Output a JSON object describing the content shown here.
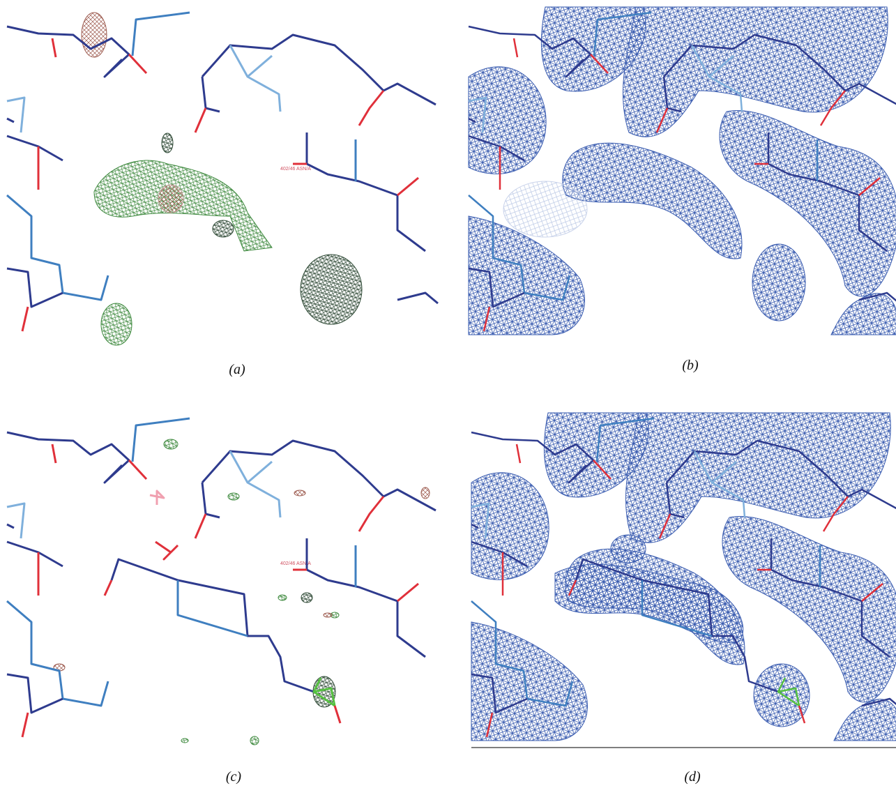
{
  "panels": [
    {
      "label": "(a)",
      "residue_label": "402/46 ASN/A"
    },
    {
      "label": "(b)"
    },
    {
      "label": "(c)",
      "residue_label": "402/46 ASN/A"
    },
    {
      "label": "(d)"
    }
  ]
}
